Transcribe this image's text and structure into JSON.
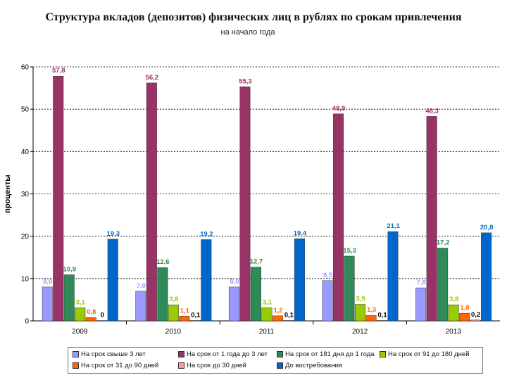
{
  "chart_data": {
    "type": "bar",
    "title": "Структура вкладов (депозитов) физических лиц в рублях по срокам привлечения",
    "subtitle": "на начало года",
    "ylabel": "проценты",
    "xlabel": "",
    "ylim": [
      0,
      60
    ],
    "yticks": [
      "0",
      "10",
      "20",
      "30",
      "40",
      "50",
      "60"
    ],
    "grid": true,
    "legend_position": "bottom",
    "categories": [
      "2009",
      "2010",
      "2011",
      "2012",
      "2013"
    ],
    "series": [
      {
        "name": "На срок свыше 3 лет",
        "color": "#9999ff",
        "values": [
          8.0,
          7.0,
          8.0,
          9.5,
          7.8
        ],
        "labels": [
          "8,0",
          "7,0",
          "8,0",
          "9,5",
          "7,8"
        ],
        "label_color": "#9999ff"
      },
      {
        "name": "На срок от 1 года до 3 лет",
        "color": "#993366",
        "values": [
          57.8,
          56.2,
          55.3,
          48.9,
          48.3
        ],
        "labels": [
          "57,8",
          "56,2",
          "55,3",
          "48,9",
          "48,3"
        ],
        "label_color": "#993366"
      },
      {
        "name": "На срок от 181 дня до 1 года",
        "color": "#2e8b57",
        "values": [
          10.9,
          12.6,
          12.7,
          15.3,
          17.2
        ],
        "labels": [
          "10,9",
          "12,6",
          "12,7",
          "15,3",
          "17,2"
        ],
        "label_color": "#2e8b57"
      },
      {
        "name": "На срок от 91 до 180 дней",
        "color": "#99cc00",
        "values": [
          3.1,
          3.8,
          3.1,
          3.9,
          3.8
        ],
        "labels": [
          "3,1",
          "3,8",
          "3,1",
          "3,9",
          "3,8"
        ],
        "label_color": "#99cc00"
      },
      {
        "name": "На срок от 31 до 90 дней",
        "color": "#ff6600",
        "values": [
          0.8,
          1.1,
          1.2,
          1.3,
          1.8
        ],
        "labels": [
          "0,8",
          "1,1",
          "1,2",
          "1,3",
          "1,8"
        ],
        "label_color": "#ff6600"
      },
      {
        "name": "На срок до 30 дней",
        "color": "#ff9999",
        "values": [
          0.0,
          0.1,
          0.1,
          0.1,
          0.2
        ],
        "labels": [
          "0",
          "0,1",
          "0,1",
          "0,1",
          "0,2"
        ],
        "label_color": "#000000"
      },
      {
        "name": "До востребования",
        "color": "#0066cc",
        "values": [
          19.3,
          19.2,
          19.4,
          21.1,
          20.8
        ],
        "labels": [
          "19,3",
          "19,2",
          "19,4",
          "21,1",
          "20,8"
        ],
        "label_color": "#0066cc"
      }
    ]
  }
}
